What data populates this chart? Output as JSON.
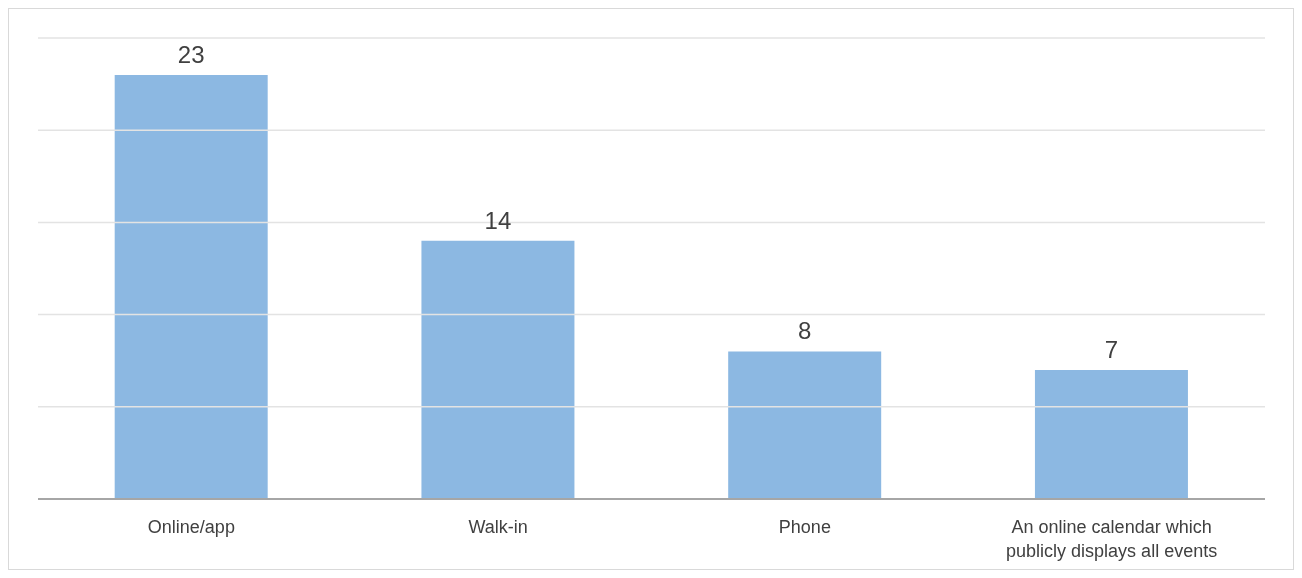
{
  "chart_data": {
    "type": "bar",
    "categories": [
      "Online/app",
      "Walk-in",
      "Phone",
      "An online calendar which publicly displays all events"
    ],
    "values": [
      23,
      14,
      8,
      7
    ],
    "color": "#8cb8e2",
    "ylim": [
      0,
      25
    ],
    "yticks": [
      {
        "value": 0,
        "label": null
      },
      {
        "value": 5,
        "label": null
      },
      {
        "value": 10,
        "label": null
      },
      {
        "value": 15,
        "label": null
      },
      {
        "value": 20,
        "label": null
      },
      {
        "value": 25,
        "label": null
      }
    ],
    "grid": "y",
    "tick_labels": "x",
    "data_labels": true
  }
}
